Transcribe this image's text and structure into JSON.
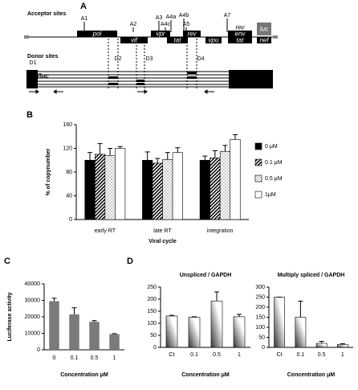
{
  "panel_labels": [
    "A",
    "B",
    "C",
    "D"
  ],
  "diagram": {
    "acceptor_title": "Acceptor sites",
    "donor_title": "Donor sites",
    "construct": "Nef/luc",
    "acceptors": [
      "A1",
      "A2",
      "A3",
      "A4c",
      "A4a",
      "A4b",
      "A5",
      "A7"
    ],
    "donors": [
      "D1",
      "D2",
      "D3",
      "D4"
    ],
    "genes": [
      "pol",
      "vif",
      "vpr",
      "tat",
      "rev",
      "vpu",
      "rev",
      "env",
      "tat",
      "luc",
      "nef"
    ]
  },
  "chart_data": [
    {
      "type": "bar",
      "ylabel": "% of copynumber",
      "xlabel": "Viral cycle",
      "categories": [
        "early RT",
        "late RT",
        "integration"
      ],
      "series": [
        {
          "name": "0  μM",
          "pattern": "solid",
          "values": [
            100,
            100,
            100
          ],
          "errors": [
            13,
            14,
            7
          ]
        },
        {
          "name": "0.1 μM",
          "pattern": "hatch",
          "values": [
            110,
            95,
            104
          ],
          "errors": [
            18,
            8,
            12
          ]
        },
        {
          "name": "0.5 μM",
          "pattern": "dots",
          "values": [
            108,
            101,
            115
          ],
          "errors": [
            12,
            12,
            10
          ]
        },
        {
          "name": "1μM",
          "pattern": "open",
          "values": [
            120,
            113,
            135
          ],
          "errors": [
            3,
            8,
            8
          ]
        }
      ],
      "ylim": [
        0,
        160
      ],
      "yticks": [
        0,
        40,
        80,
        120,
        160
      ],
      "legend": "right"
    },
    {
      "type": "bar",
      "ylabel": "Luciferase activity",
      "xlabel": "Concentration μM",
      "categories": [
        "0",
        "0.1",
        "0.5",
        "1"
      ],
      "values": [
        29500,
        21500,
        17000,
        9500
      ],
      "errors": [
        1800,
        4000,
        700,
        300
      ],
      "color": "#7a7a7a",
      "ylim": [
        0,
        40000
      ],
      "yticks": [
        0,
        10000,
        20000,
        30000,
        40000
      ]
    },
    {
      "type": "bar",
      "title": "Unspliced / GAPDH",
      "xlabel": "Concentration μM",
      "categories": [
        "Ct",
        "0.1",
        "0.5",
        "1"
      ],
      "values": [
        130,
        125,
        192,
        127
      ],
      "errors": [
        3,
        2,
        38,
        10
      ],
      "color": "#333333",
      "ylim": [
        0,
        250
      ],
      "yticks": [
        0,
        50,
        100,
        150,
        200,
        250
      ]
    },
    {
      "type": "bar",
      "title": "Multiply spliced / GAPDH",
      "xlabel": "Concentration μM",
      "categories": [
        "Ct",
        "0.1",
        "0.5",
        "1"
      ],
      "values": [
        250,
        150,
        20,
        15
      ],
      "errors": [
        0,
        80,
        10,
        3
      ],
      "color": "#333333",
      "ylim": [
        0,
        300
      ],
      "yticks": [
        0,
        50,
        100,
        150,
        200,
        250,
        300
      ]
    }
  ]
}
